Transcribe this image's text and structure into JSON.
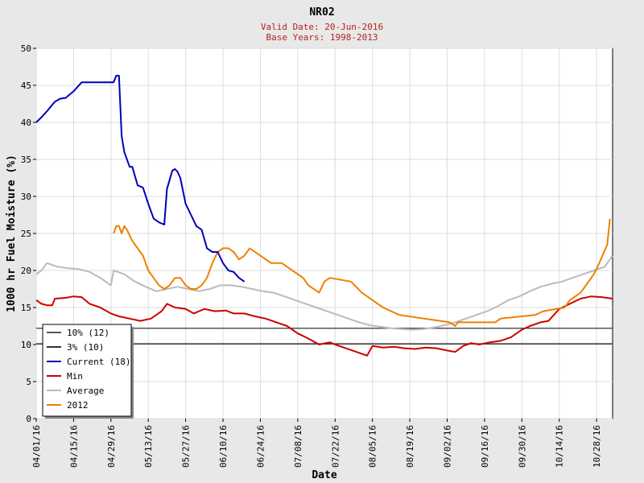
{
  "chart_data": {
    "type": "line",
    "title": "NR02",
    "subtitle_lines": [
      "Valid Date: 20-Jun-2016",
      "Base Years: 1998-2013"
    ],
    "xlabel": "Date",
    "ylabel": "1000 hr Fuel Moisture (%)",
    "xlim": [
      "04/01/16",
      "11/03/16"
    ],
    "ylim": [
      0,
      50
    ],
    "yticks": [
      0,
      5,
      10,
      15,
      20,
      25,
      30,
      35,
      40,
      45,
      50
    ],
    "xticks": [
      "04/01/16",
      "04/15/16",
      "04/29/16",
      "05/13/16",
      "05/27/16",
      "06/10/16",
      "06/24/16",
      "07/08/16",
      "07/22/16",
      "08/05/16",
      "08/19/16",
      "09/02/16",
      "09/16/16",
      "09/30/16",
      "10/14/16",
      "10/28/16"
    ],
    "grid": true,
    "legend_position": "bottom-left",
    "series": [
      {
        "name": "10% (12)",
        "color": "#555555",
        "style": "hline",
        "value": 12.2
      },
      {
        "name": "3% (10)",
        "color": "#333333",
        "style": "hline",
        "value": 10.1
      },
      {
        "name": "Current (18)",
        "color": "#0000bb",
        "x": [
          "04/01/16",
          "04/03/16",
          "04/05/16",
          "04/08/16",
          "04/10/16",
          "04/12/16",
          "04/15/16",
          "04/18/16",
          "04/20/16",
          "04/25/16",
          "04/30/16",
          "05/01/16",
          "05/02/16",
          "05/03/16",
          "05/04/16",
          "05/06/16",
          "05/07/16",
          "05/09/16",
          "05/11/16",
          "05/13/16",
          "05/15/16",
          "05/17/16",
          "05/19/16",
          "05/20/16",
          "05/22/16",
          "05/23/16",
          "05/24/16",
          "05/25/16",
          "05/27/16",
          "05/29/16",
          "05/31/16",
          "06/02/16",
          "06/04/16",
          "06/06/16",
          "06/08/16",
          "06/10/16",
          "06/12/16",
          "06/14/16",
          "06/16/16",
          "06/18/16"
        ],
        "y": [
          40,
          40.7,
          41.5,
          42.8,
          43.2,
          43.3,
          44.2,
          45.4,
          45.4,
          45.4,
          45.4,
          46.3,
          46.3,
          38.2,
          36,
          34,
          34,
          31.5,
          31.2,
          29,
          27,
          26.5,
          26.2,
          31,
          33.5,
          33.7,
          33.3,
          32.5,
          29,
          27.5,
          26,
          25.5,
          23,
          22.5,
          22.5,
          21,
          20,
          19.8,
          19,
          18.5
        ]
      },
      {
        "name": "Min",
        "color": "#cc0000",
        "x": [
          "04/01/16",
          "04/03/16",
          "04/05/16",
          "04/07/16",
          "04/08/16",
          "04/12/16",
          "04/15/16",
          "04/18/16",
          "04/21/16",
          "04/25/16",
          "04/29/16",
          "05/02/16",
          "05/06/16",
          "05/10/16",
          "05/14/16",
          "05/18/16",
          "05/20/16",
          "05/23/16",
          "05/27/16",
          "05/30/16",
          "06/03/16",
          "06/07/16",
          "06/11/16",
          "06/14/16",
          "06/18/16",
          "06/22/16",
          "06/26/16",
          "06/30/16",
          "07/04/16",
          "07/08/16",
          "07/12/16",
          "07/16/16",
          "07/20/16",
          "07/22/16",
          "07/26/16",
          "07/30/16",
          "08/03/16",
          "08/05/16",
          "08/09/16",
          "08/13/16",
          "08/17/16",
          "08/21/16",
          "08/25/16",
          "08/29/16",
          "09/02/16",
          "09/05/16",
          "09/08/16",
          "09/11/16",
          "09/14/16",
          "09/18/16",
          "09/22/16",
          "09/26/16",
          "09/30/16",
          "10/03/16",
          "10/07/16",
          "10/10/16",
          "10/14/16",
          "10/18/16",
          "10/22/16",
          "10/26/16",
          "10/30/16",
          "11/03/16"
        ],
        "y": [
          16,
          15.5,
          15.3,
          15.3,
          16.2,
          16.3,
          16.5,
          16.4,
          15.5,
          15,
          14.2,
          13.8,
          13.5,
          13.2,
          13.5,
          14.5,
          15.5,
          15,
          14.8,
          14.2,
          14.8,
          14.5,
          14.6,
          14.2,
          14.2,
          13.8,
          13.5,
          13,
          12.5,
          11.5,
          10.8,
          10,
          10.3,
          10,
          9.5,
          9,
          8.5,
          9.8,
          9.6,
          9.7,
          9.5,
          9.4,
          9.6,
          9.5,
          9.2,
          9,
          9.8,
          10.2,
          10,
          10.3,
          10.5,
          11,
          12,
          12.5,
          13,
          13.2,
          14.8,
          15.5,
          16.2,
          16.5,
          16.4,
          16.2
        ]
      },
      {
        "name": "Average",
        "color": "#bbbbbb",
        "x": [
          "04/01/16",
          "04/03/16",
          "04/05/16",
          "04/09/16",
          "04/13/16",
          "04/17/16",
          "04/21/16",
          "04/25/16",
          "04/29/16",
          "04/30/16",
          "05/04/16",
          "05/08/16",
          "05/12/16",
          "05/16/16",
          "05/20/16",
          "05/24/16",
          "05/28/16",
          "06/01/16",
          "06/05/16",
          "06/09/16",
          "06/13/16",
          "06/17/16",
          "06/21/16",
          "06/25/16",
          "06/29/16",
          "07/03/16",
          "07/07/16",
          "07/11/16",
          "07/15/16",
          "07/19/16",
          "07/23/16",
          "07/27/16",
          "07/31/16",
          "08/04/16",
          "08/08/16",
          "08/12/16",
          "08/16/16",
          "08/20/16",
          "08/24/16",
          "08/28/16",
          "09/01/16",
          "09/05/16",
          "09/09/16",
          "09/13/16",
          "09/17/16",
          "09/21/16",
          "09/25/16",
          "09/29/16",
          "10/03/16",
          "10/07/16",
          "10/11/16",
          "10/15/16",
          "10/19/16",
          "10/23/16",
          "10/27/16",
          "10/31/16",
          "11/03/16"
        ],
        "y": [
          19.5,
          20,
          21,
          20.5,
          20.3,
          20.2,
          19.8,
          19,
          18,
          20,
          19.5,
          18.5,
          17.8,
          17.2,
          17.5,
          17.8,
          17.5,
          17.2,
          17.5,
          18,
          18,
          17.8,
          17.5,
          17.2,
          17,
          16.5,
          16,
          15.5,
          15,
          14.5,
          14,
          13.5,
          13,
          12.6,
          12.4,
          12.2,
          12.1,
          12,
          12.1,
          12.3,
          12.6,
          13,
          13.5,
          14,
          14.5,
          15.2,
          16,
          16.5,
          17.2,
          17.8,
          18.2,
          18.5,
          19,
          19.5,
          20,
          20.5,
          22
        ]
      },
      {
        "name": "2012",
        "color": "#ee8000",
        "x": [
          "04/30/16",
          "05/01/16",
          "05/02/16",
          "05/03/16",
          "05/04/16",
          "05/05/16",
          "05/07/16",
          "05/09/16",
          "05/11/16",
          "05/13/16",
          "05/15/16",
          "05/17/16",
          "05/19/16",
          "05/21/16",
          "05/23/16",
          "05/25/16",
          "05/27/16",
          "05/29/16",
          "05/31/16",
          "06/02/16",
          "06/04/16",
          "06/06/16",
          "06/08/16",
          "06/10/16",
          "06/12/16",
          "06/14/16",
          "06/16/16",
          "06/18/16",
          "06/20/16",
          "06/24/16",
          "06/26/16",
          "06/28/16",
          "07/02/16",
          "07/04/16",
          "07/06/16",
          "07/10/16",
          "07/12/16",
          "07/16/16",
          "07/18/16",
          "07/20/16",
          "07/28/16",
          "08/01/16",
          "08/09/16",
          "08/15/16",
          "09/03/16",
          "09/05/16",
          "09/06/16",
          "09/20/16",
          "09/22/16",
          "10/05/16",
          "10/08/16",
          "10/16/16",
          "10/18/16",
          "10/22/16",
          "10/24/16",
          "10/27/16",
          "10/29/16",
          "11/01/16",
          "11/02/16"
        ],
        "y": [
          25,
          26,
          26,
          25,
          26,
          25.5,
          24,
          23,
          22,
          20,
          19,
          18,
          17.5,
          18,
          19,
          19,
          18,
          17.5,
          17.5,
          18,
          19,
          21,
          22.5,
          23,
          23,
          22.5,
          21.5,
          22,
          23,
          22,
          21.5,
          21,
          21,
          20.5,
          20,
          19,
          18,
          17,
          18.5,
          19,
          18.5,
          17,
          15,
          14,
          13,
          12.5,
          13,
          13,
          13.5,
          14,
          14.5,
          15,
          16,
          17,
          18,
          19.5,
          21,
          23.5,
          27
        ]
      }
    ]
  }
}
